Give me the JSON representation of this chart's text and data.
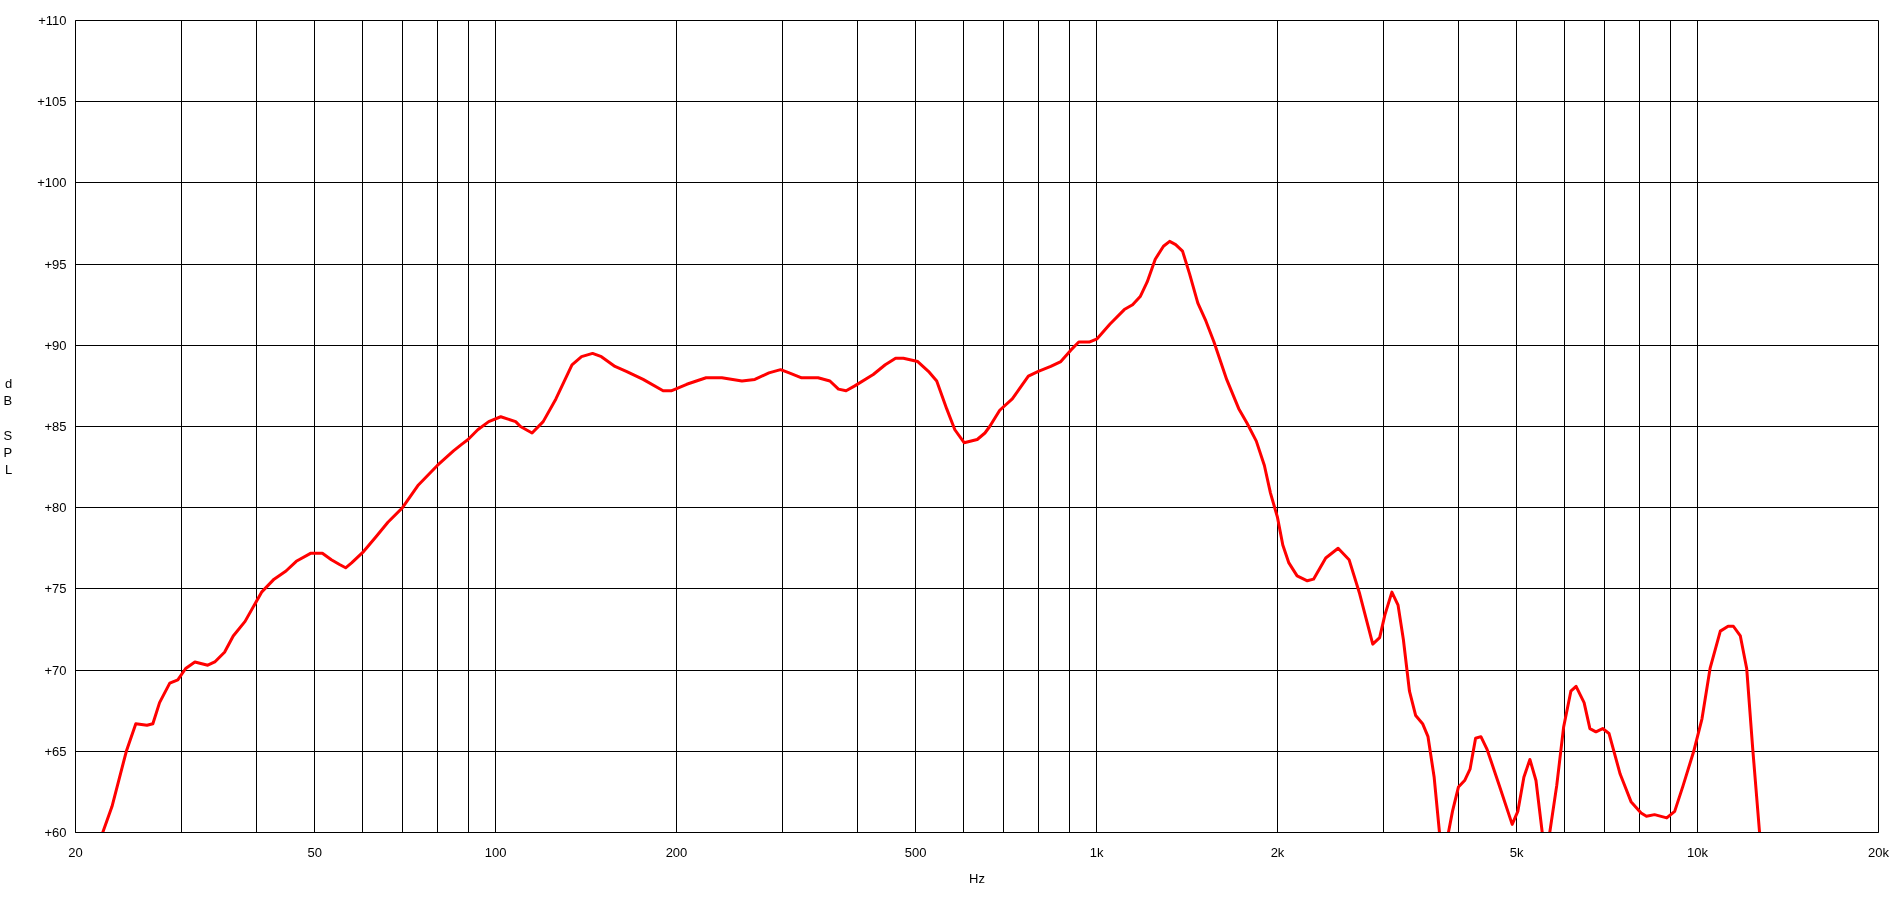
{
  "chart_data": {
    "type": "line",
    "xlabel": "Hz",
    "ylabel": "dB SPL",
    "log": "x",
    "grid": true,
    "line_style": "solid",
    "xlim": [
      20,
      20000
    ],
    "ylim": [
      60,
      110
    ],
    "xticks": [
      20,
      {
        "value": 30,
        "label": null
      },
      {
        "value": 40,
        "label": null
      },
      50,
      {
        "value": 60,
        "label": null
      },
      {
        "value": 70,
        "label": null
      },
      {
        "value": 80,
        "label": null
      },
      {
        "value": 90,
        "label": null
      },
      100,
      200,
      {
        "value": 300,
        "label": null
      },
      {
        "value": 400,
        "label": null
      },
      500,
      {
        "value": 600,
        "label": null
      },
      {
        "value": 700,
        "label": null
      },
      {
        "value": 800,
        "label": null
      },
      {
        "value": 900,
        "label": null
      },
      {
        "value": 1000,
        "label": "1k"
      },
      {
        "value": 2000,
        "label": "2k"
      },
      {
        "value": 3000,
        "label": null
      },
      {
        "value": 4000,
        "label": null
      },
      {
        "value": 5000,
        "label": "5k"
      },
      {
        "value": 6000,
        "label": null
      },
      {
        "value": 7000,
        "label": null
      },
      {
        "value": 8000,
        "label": null
      },
      {
        "value": 9000,
        "label": null
      },
      {
        "value": 10000,
        "label": "10k"
      },
      {
        "value": 20000,
        "label": "20k"
      }
    ],
    "yticks": [
      {
        "value": 60,
        "label": "+60"
      },
      {
        "value": 65,
        "label": "+65"
      },
      {
        "value": 70,
        "label": "+70"
      },
      {
        "value": 75,
        "label": "+75"
      },
      {
        "value": 80,
        "label": "+80"
      },
      {
        "value": 85,
        "label": "+85"
      },
      {
        "value": 90,
        "label": "+90"
      },
      {
        "value": 95,
        "label": "+95"
      },
      {
        "value": 100,
        "label": "+100"
      },
      {
        "value": 105,
        "label": "+105"
      },
      {
        "value": 110,
        "label": "+110"
      }
    ],
    "x": [
      22.2,
      23.0,
      24.3,
      25.2,
      26.3,
      26.9,
      27.6,
      28.7,
      29.6,
      30.5,
      31.6,
      33.2,
      34.1,
      35.4,
      36.6,
      38.3,
      40.8,
      42.8,
      44.8,
      46.6,
      49.3,
      51.5,
      53.3,
      55.0,
      56.3,
      57.6,
      60.3,
      63.2,
      66.2,
      70,
      74.4,
      80,
      85.1,
      87.8,
      90,
      93.4,
      97.4,
      102,
      108,
      110,
      115,
      120,
      126,
      134,
      139,
      145,
      150,
      158,
      165,
      176,
      190,
      196,
      208,
      224,
      238,
      257,
      270,
      285,
      298,
      308,
      323,
      344,
      360,
      372,
      383,
      396,
      425,
      445,
      463,
      477,
      504,
      525,
      542,
      563,
      581,
      602,
      633,
      652,
      664,
      690,
      724,
      770,
      800,
      839,
      872,
      906,
      934,
      972,
      1002,
      1052,
      1112,
      1148,
      1182,
      1214,
      1252,
      1292,
      1323,
      1354,
      1390,
      1428,
      1474,
      1520,
      1568,
      1646,
      1724,
      1780,
      1844,
      1902,
      1947,
      2000,
      2041,
      2089,
      2156,
      2242,
      2296,
      2406,
      2523,
      2631,
      2740,
      2881,
      2958,
      3018,
      3100,
      3174,
      3239,
      3316,
      3396,
      3487,
      3560,
      3645,
      3720,
      3780,
      3850,
      3910,
      4000,
      4096,
      4182,
      4272,
      4360,
      4466,
      4678,
      4915,
      5022,
      5140,
      5260,
      5384,
      5515,
      5600,
      5676,
      5830,
      5986,
      6154,
      6278,
      6474,
      6620,
      6774,
      6951,
      7122,
      7433,
      7749,
      8054,
      8221,
      8480,
      8886,
      9160,
      9463,
      9853,
      10170,
      10490,
      10910,
      11240,
      11470,
      11780,
      12070,
      12350,
      12680
    ],
    "series": [
      {
        "color": "#ff0000",
        "values": [
          60,
          61.6,
          65.0,
          66.7,
          66.6,
          66.7,
          68.0,
          69.2,
          69.4,
          70.1,
          70.5,
          70.3,
          70.5,
          71.1,
          72.1,
          73.0,
          74.8,
          75.6,
          76.1,
          76.7,
          77.2,
          77.2,
          76.8,
          76.5,
          76.3,
          76.6,
          77.3,
          78.2,
          79.1,
          80.0,
          81.4,
          82.6,
          83.5,
          83.9,
          84.2,
          84.8,
          85.3,
          85.6,
          85.3,
          85.0,
          84.6,
          85.3,
          86.7,
          88.8,
          89.3,
          89.5,
          89.3,
          88.7,
          88.4,
          87.9,
          87.2,
          87.2,
          87.6,
          88.0,
          88.0,
          87.8,
          87.9,
          88.3,
          88.5,
          88.3,
          88.0,
          88.0,
          87.8,
          87.3,
          87.2,
          87.5,
          88.2,
          88.8,
          89.2,
          89.2,
          89.0,
          88.4,
          87.8,
          86.1,
          84.8,
          84.0,
          84.2,
          84.6,
          85.0,
          86.0,
          86.7,
          88.1,
          88.4,
          88.7,
          89.0,
          89.7,
          90.2,
          90.2,
          90.4,
          91.3,
          92.2,
          92.5,
          93.0,
          93.9,
          95.3,
          96.1,
          96.4,
          96.2,
          95.8,
          94.4,
          92.6,
          91.5,
          90.2,
          87.9,
          86.1,
          85.2,
          84.1,
          82.6,
          80.9,
          79.4,
          77.7,
          76.6,
          75.8,
          75.5,
          75.6,
          76.9,
          77.5,
          76.8,
          74.7,
          71.6,
          72.0,
          73.4,
          74.8,
          74.0,
          71.9,
          68.7,
          67.2,
          66.7,
          65.9,
          63.4,
          60,
          null,
          60,
          61.3,
          62.8,
          63.2,
          63.9,
          65.8,
          65.9,
          65.1,
          62.9,
          60.5,
          61.3,
          63.4,
          64.5,
          63.2,
          60,
          null,
          60,
          62.9,
          66.5,
          68.7,
          69.0,
          68.0,
          66.4,
          66.2,
          66.4,
          66.1,
          63.6,
          61.9,
          61.2,
          61.0,
          61.1,
          60.9,
          61.3,
          62.9,
          65.0,
          67.0,
          70.1,
          72.4,
          72.7,
          72.7,
          72.1,
          70.1,
          65.2,
          60
        ]
      }
    ]
  }
}
